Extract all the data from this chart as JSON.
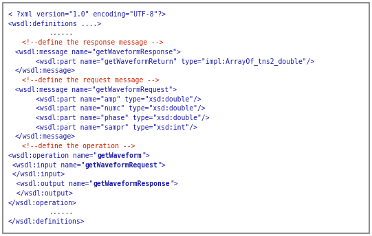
{
  "bg_color": "#ffffff",
  "border_color": "#777777",
  "font_size": 7.0,
  "lines": [
    [
      {
        "t": "< ?xml version=\"1.0\" encoding=\"UTF-8\"?>",
        "c": "#1a1aaa",
        "b": false,
        "i": 0
      }
    ],
    [
      {
        "t": "<wsdl:definitions ....>",
        "c": "#1a1aaa",
        "b": false,
        "i": 0
      }
    ],
    [
      {
        "t": "......",
        "c": "#444444",
        "b": false,
        "i": 6
      }
    ],
    [
      {
        "t": "<!--define the response message -->",
        "c": "#cc2200",
        "b": false,
        "i": 2
      }
    ],
    [
      {
        "t": "<wsdl:message name=\"getWaveformResponse\">",
        "c": "#1a1aaa",
        "b": false,
        "i": 1
      }
    ],
    [
      {
        "t": "<wsdl:part name=\"getWaveformReturn\" type=\"impl:ArrayOf_tns2_double\"/>",
        "c": "#1a1aaa",
        "b": false,
        "i": 4
      }
    ],
    [
      {
        "t": "</wsdl:message>",
        "c": "#1a1aaa",
        "b": false,
        "i": 1
      }
    ],
    [
      {
        "t": "<!--define the request message -->",
        "c": "#cc2200",
        "b": false,
        "i": 2
      }
    ],
    [
      {
        "t": "<wsdl:message name=\"getWaveformRequest\">",
        "c": "#1a1aaa",
        "b": false,
        "i": 1
      }
    ],
    [
      {
        "t": "<wsdl:part name=\"amp\" type=\"xsd:double\"/>",
        "c": "#1a1aaa",
        "b": false,
        "i": 4
      }
    ],
    [
      {
        "t": "<wsdl:part name=\"numc\" type=\"xsd:double\"/>",
        "c": "#1a1aaa",
        "b": false,
        "i": 4
      }
    ],
    [
      {
        "t": "<wsdl:part name=\"phase\" type=\"xsd:double\"/>",
        "c": "#1a1aaa",
        "b": false,
        "i": 4
      }
    ],
    [
      {
        "t": "<wsdl:part name=\"sampr\" type=\"xsd:int\"/>",
        "c": "#1a1aaa",
        "b": false,
        "i": 4
      }
    ],
    [
      {
        "t": "</wsdl:message>",
        "c": "#1a1aaa",
        "b": false,
        "i": 1
      }
    ],
    [
      {
        "t": "<!--define the operation -->",
        "c": "#cc2200",
        "b": false,
        "i": 2
      }
    ],
    [
      {
        "t": "<wsdl:operation name=\"",
        "c": "#1a1aaa",
        "b": false,
        "i": 0
      },
      {
        "t": "getWaveform",
        "c": "#1a1aaa",
        "b": true,
        "i": 0
      },
      {
        "t": "\">",
        "c": "#1a1aaa",
        "b": false,
        "i": 0
      }
    ],
    [
      {
        "t": " <wsdl:input name=\"",
        "c": "#1a1aaa",
        "b": false,
        "i": 0
      },
      {
        "t": "getWaveformRequest",
        "c": "#1a1aaa",
        "b": true,
        "i": 0
      },
      {
        "t": "\">",
        "c": "#1a1aaa",
        "b": false,
        "i": 0
      }
    ],
    [
      {
        "t": " </wsdl:input>",
        "c": "#1a1aaa",
        "b": false,
        "i": 0
      }
    ],
    [
      {
        "t": "  <wsdl:output name=\"",
        "c": "#1a1aaa",
        "b": false,
        "i": 0
      },
      {
        "t": "getWaveformResponse",
        "c": "#1a1aaa",
        "b": true,
        "i": 0
      },
      {
        "t": "\">",
        "c": "#1a1aaa",
        "b": false,
        "i": 0
      }
    ],
    [
      {
        "t": "  </wsdl:output>",
        "c": "#1a1aaa",
        "b": false,
        "i": 0
      }
    ],
    [
      {
        "t": "</wsdl:operation>",
        "c": "#1a1aaa",
        "b": false,
        "i": 0
      }
    ],
    [
      {
        "t": "......",
        "c": "#444444",
        "b": false,
        "i": 6
      }
    ],
    [
      {
        "t": "</wsdl:definitions>",
        "c": "#1a1aaa",
        "b": false,
        "i": 0
      }
    ]
  ]
}
